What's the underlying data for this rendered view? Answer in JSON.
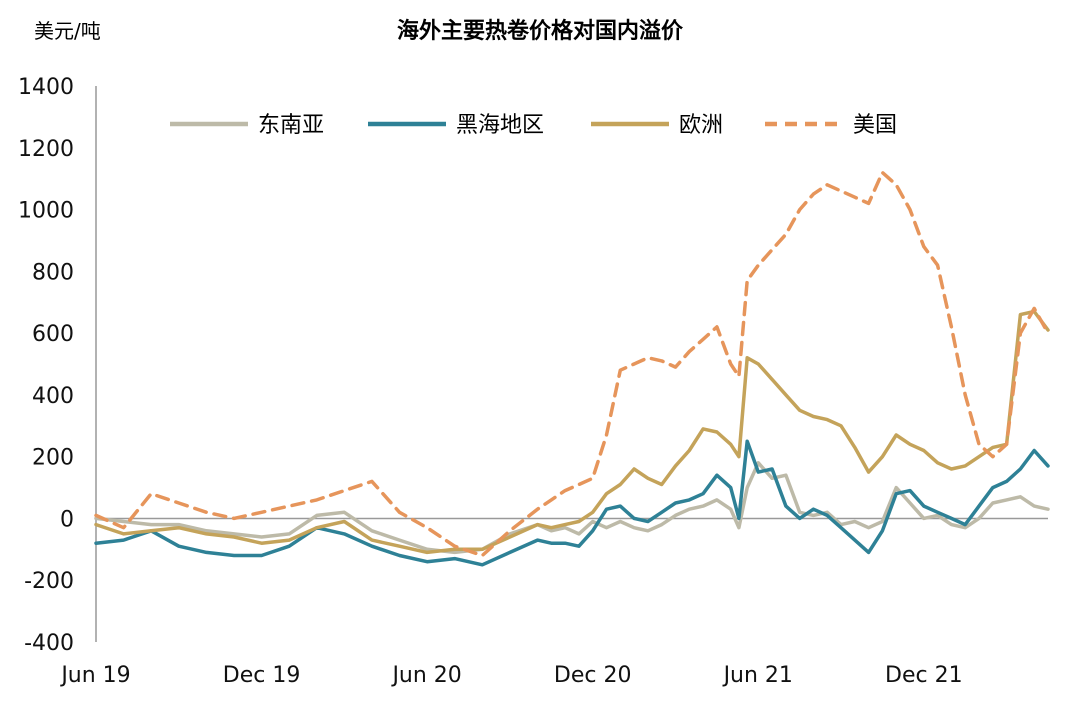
{
  "chart_data": {
    "type": "line",
    "title": "海外主要热卷价格对国内溢价",
    "unit_label": "美元/吨",
    "ylim": [
      -400,
      1400
    ],
    "yticks": [
      -400,
      -200,
      0,
      200,
      400,
      600,
      800,
      1000,
      1200,
      1400
    ],
    "xtick_labels": [
      "Jun 19",
      "Dec 19",
      "Jun 20",
      "Dec 20",
      "Jun 21",
      "Dec 21"
    ],
    "xtick_months": [
      0,
      6,
      12,
      18,
      24,
      30
    ],
    "x_months_max": 34.5,
    "grid": false,
    "legend_position": "top",
    "series": [
      {
        "name": "东南亚",
        "color": "#bdbaa8",
        "dash": "",
        "x": [
          0,
          1,
          2,
          3,
          4,
          5,
          6,
          7,
          8,
          9,
          10,
          11,
          12,
          13,
          14,
          15,
          16,
          16.5,
          17,
          17.5,
          18,
          18.5,
          19,
          19.5,
          20,
          20.5,
          21,
          21.5,
          22,
          22.5,
          23,
          23.3,
          23.6,
          24,
          24.5,
          25,
          25.5,
          26,
          26.5,
          27,
          27.5,
          28,
          28.5,
          29,
          29.5,
          30,
          30.5,
          31,
          31.5,
          32,
          32.5,
          33,
          33.5,
          34,
          34.5
        ],
        "y": [
          0,
          -10,
          -20,
          -20,
          -40,
          -50,
          -60,
          -50,
          10,
          20,
          -40,
          -70,
          -100,
          -110,
          -100,
          -50,
          -20,
          -40,
          -30,
          -50,
          -10,
          -30,
          -10,
          -30,
          -40,
          -20,
          10,
          30,
          40,
          60,
          30,
          -30,
          100,
          180,
          130,
          140,
          20,
          10,
          20,
          -20,
          -10,
          -30,
          -10,
          100,
          50,
          0,
          10,
          -20,
          -30,
          0,
          50,
          60,
          70,
          40,
          30
        ]
      },
      {
        "name": "黑海地区",
        "color": "#2e8196",
        "dash": "",
        "x": [
          0,
          1,
          2,
          3,
          4,
          5,
          6,
          7,
          8,
          9,
          10,
          11,
          12,
          13,
          14,
          15,
          16,
          16.5,
          17,
          17.5,
          18,
          18.5,
          19,
          19.5,
          20,
          20.5,
          21,
          21.5,
          22,
          22.5,
          23,
          23.3,
          23.6,
          24,
          24.5,
          25,
          25.5,
          26,
          26.5,
          27,
          27.5,
          28,
          28.5,
          29,
          29.5,
          30,
          30.5,
          31,
          31.5,
          32,
          32.5,
          33,
          33.5,
          34,
          34.5
        ],
        "y": [
          -80,
          -70,
          -40,
          -90,
          -110,
          -120,
          -120,
          -90,
          -30,
          -50,
          -90,
          -120,
          -140,
          -130,
          -150,
          -110,
          -70,
          -80,
          -80,
          -90,
          -40,
          30,
          40,
          0,
          -10,
          20,
          50,
          60,
          80,
          140,
          100,
          0,
          250,
          150,
          160,
          40,
          0,
          30,
          10,
          -30,
          -70,
          -110,
          -40,
          80,
          90,
          40,
          20,
          0,
          -20,
          40,
          100,
          120,
          160,
          220,
          170
        ]
      },
      {
        "name": "欧洲",
        "color": "#c4a35a",
        "dash": "",
        "x": [
          0,
          1,
          2,
          3,
          4,
          5,
          6,
          7,
          8,
          9,
          10,
          11,
          12,
          13,
          14,
          15,
          16,
          16.5,
          17,
          17.5,
          18,
          18.5,
          19,
          19.5,
          20,
          20.5,
          21,
          21.5,
          22,
          22.5,
          23,
          23.3,
          23.6,
          24,
          24.5,
          25,
          25.5,
          26,
          26.5,
          27,
          27.5,
          28,
          28.5,
          29,
          29.5,
          30,
          30.5,
          31,
          31.5,
          32,
          32.5,
          33,
          33.5,
          34,
          34.5
        ],
        "y": [
          -20,
          -50,
          -40,
          -30,
          -50,
          -60,
          -80,
          -70,
          -30,
          -10,
          -70,
          -90,
          -110,
          -100,
          -100,
          -60,
          -20,
          -30,
          -20,
          -10,
          20,
          80,
          110,
          160,
          130,
          110,
          170,
          220,
          290,
          280,
          240,
          200,
          520,
          500,
          450,
          400,
          350,
          330,
          320,
          300,
          230,
          150,
          200,
          270,
          240,
          220,
          180,
          160,
          170,
          200,
          230,
          240,
          660,
          670,
          610
        ]
      },
      {
        "name": "美国",
        "color": "#e6955b",
        "dash": "12 8",
        "x": [
          0,
          1,
          2,
          3,
          4,
          5,
          6,
          7,
          8,
          9,
          10,
          11,
          12,
          13,
          14,
          15,
          16,
          16.5,
          17,
          17.5,
          18,
          18.5,
          19,
          19.5,
          20,
          20.5,
          21,
          21.5,
          22,
          22.5,
          23,
          23.3,
          23.6,
          24,
          24.5,
          25,
          25.5,
          26,
          26.5,
          27,
          27.5,
          28,
          28.5,
          29,
          29.5,
          30,
          30.5,
          31,
          31.5,
          32,
          32.5,
          33,
          33.5,
          34,
          34.5
        ],
        "y": [
          10,
          -30,
          80,
          50,
          20,
          0,
          20,
          40,
          60,
          90,
          120,
          20,
          -30,
          -90,
          -120,
          -40,
          30,
          60,
          90,
          110,
          130,
          270,
          480,
          500,
          520,
          510,
          490,
          540,
          580,
          620,
          500,
          460,
          770,
          820,
          870,
          920,
          1000,
          1050,
          1080,
          1060,
          1040,
          1020,
          1120,
          1080,
          1000,
          880,
          820,
          620,
          400,
          240,
          200,
          240,
          600,
          680,
          600
        ]
      }
    ]
  }
}
